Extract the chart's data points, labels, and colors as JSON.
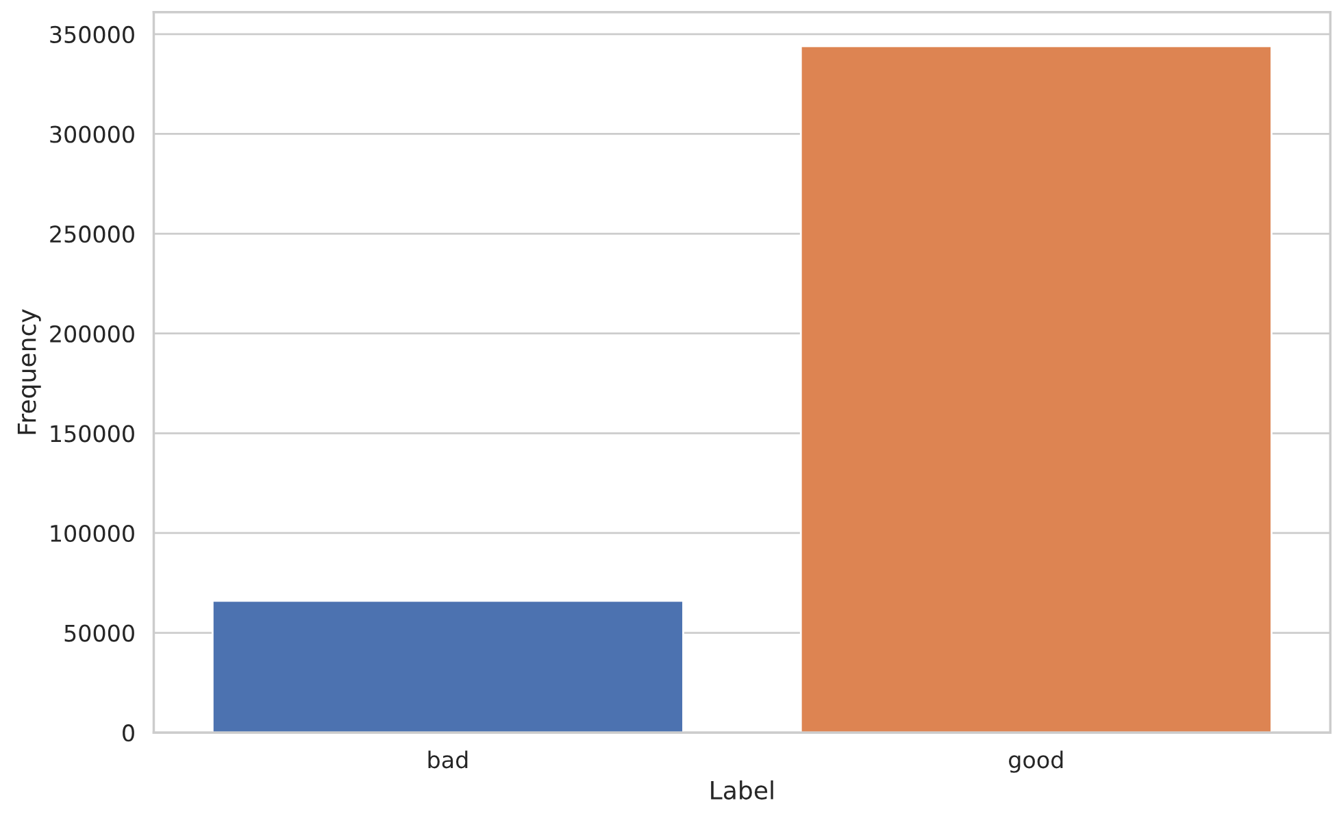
{
  "chart_data": {
    "type": "bar",
    "xlabel": "Label",
    "ylabel": "Frequency",
    "categories": [
      "bad",
      "good"
    ],
    "values": [
      66000,
      344000
    ],
    "colors": [
      "#4c72b0",
      "#dd8452"
    ],
    "ylim": [
      0,
      361000
    ],
    "yticks": [
      0,
      50000,
      100000,
      150000,
      200000,
      250000,
      300000,
      350000
    ],
    "grid": "y"
  }
}
